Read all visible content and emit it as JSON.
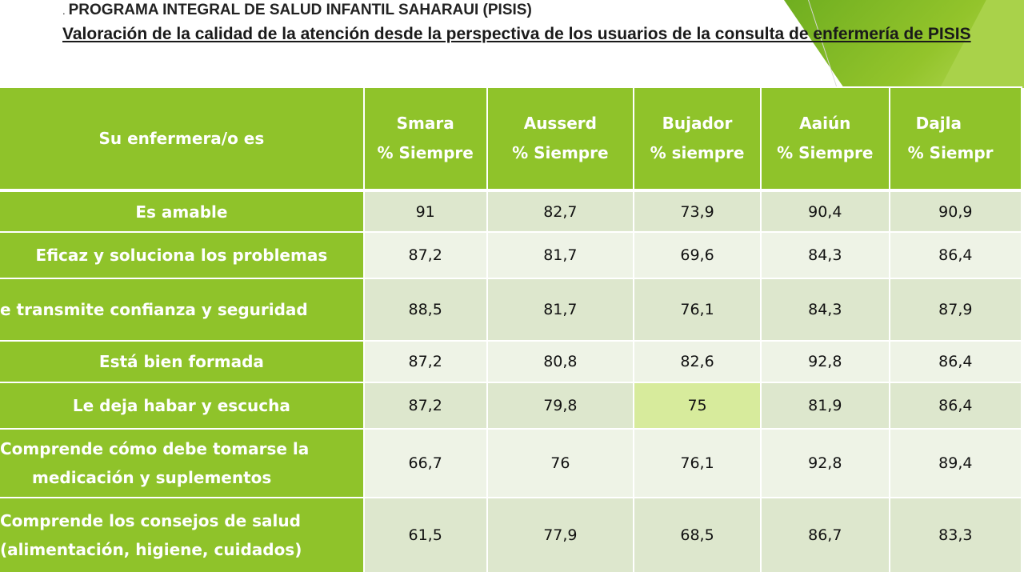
{
  "header": {
    "program_dot": ".",
    "program": "PROGRAMA INTEGRAL DE SALUD INFANTIL SAHARAUI (PISIS)",
    "subtitle": "Valoración de la calidad de la atención desde la perspectiva de los usuarios de la consulta de enfermería de PISIS"
  },
  "table": {
    "row_header_title": "Su enfermera/o es",
    "columns": [
      {
        "name": "Smara",
        "metric": "% Siempre"
      },
      {
        "name": "Ausserd",
        "metric": "% Siempre"
      },
      {
        "name": "Bujador",
        "metric": "% siempre"
      },
      {
        "name": "Aaiún",
        "metric": "% Siempre"
      },
      {
        "name": "Dajla",
        "metric": "% Siempr"
      }
    ],
    "rows": [
      {
        "label_1": "Es amable",
        "label_2": "",
        "values": [
          "91",
          "82,7",
          "73,9",
          "90,4",
          "90,9"
        ]
      },
      {
        "label_1": "Eficaz y soluciona los problemas",
        "label_2": "",
        "values": [
          "87,2",
          "81,7",
          "69,6",
          "84,3",
          "86,4"
        ]
      },
      {
        "label_1": "e transmite confianza y seguridad",
        "label_2": "",
        "values": [
          "88,5",
          "81,7",
          "76,1",
          "84,3",
          "87,9"
        ]
      },
      {
        "label_1": "Está bien formada",
        "label_2": "",
        "values": [
          "87,2",
          "80,8",
          "82,6",
          "92,8",
          "86,4"
        ]
      },
      {
        "label_1": "Le deja habar y escucha",
        "label_2": "",
        "values": [
          "87,2",
          "79,8",
          "75",
          "81,9",
          "86,4"
        ]
      },
      {
        "label_1": "Comprende  cómo debe tomarse la",
        "label_2": "medicación y suplementos",
        "values": [
          "66,7",
          "76",
          "76,1",
          "92,8",
          "89,4"
        ]
      },
      {
        "label_1": "Comprende los consejos de salud",
        "label_2": "(alimentación, higiene, cuidados)",
        "values": [
          "61,5",
          "77,9",
          "68,5",
          "86,7",
          "83,3"
        ]
      }
    ]
  },
  "colors": {
    "header_green": "#8fc32a",
    "row_odd": "#dde7cd",
    "row_even": "#eef3e6",
    "highlight_cell": "#d7eb9c"
  }
}
